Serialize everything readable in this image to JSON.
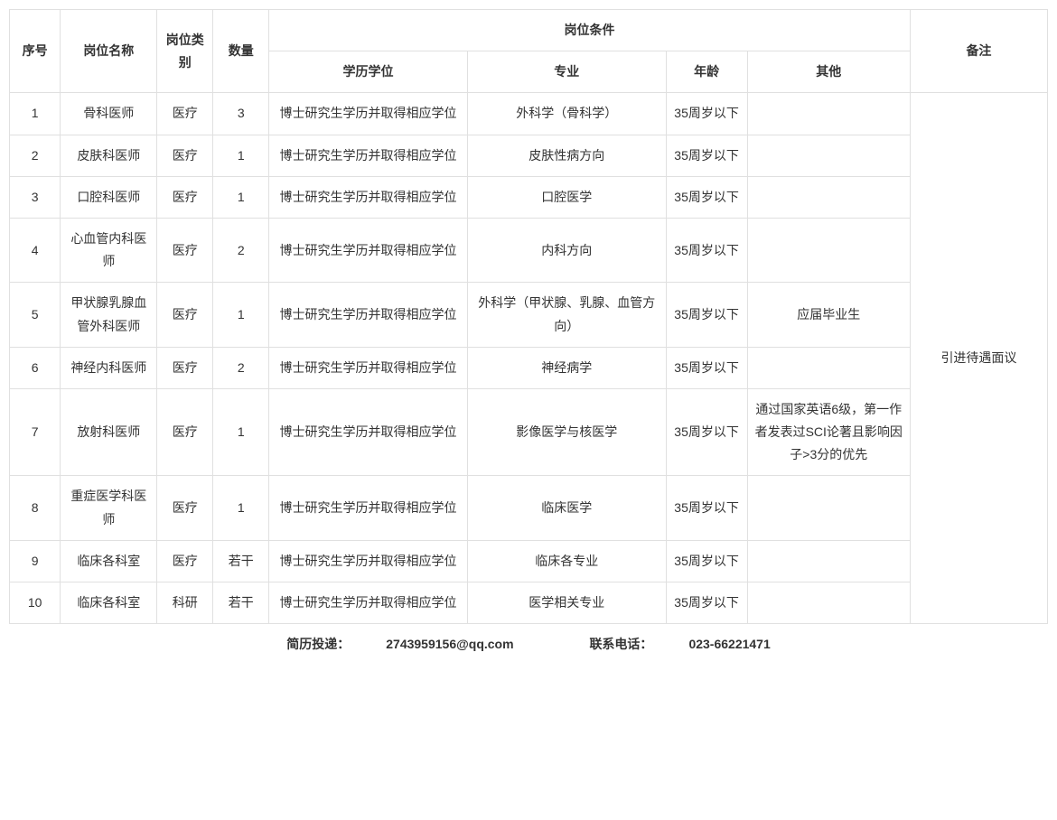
{
  "table": {
    "headers": {
      "seq": "序号",
      "position_name": "岗位名称",
      "position_type": "岗位类别",
      "quantity": "数量",
      "conditions": "岗位条件",
      "education": "学历学位",
      "major": "专业",
      "age": "年龄",
      "other": "其他",
      "remark": "备注"
    },
    "rows": [
      {
        "seq": "1",
        "position_name": "骨科医师",
        "position_type": "医疗",
        "quantity": "3",
        "education": "博士研究生学历并取得相应学位",
        "major": "外科学（骨科学）",
        "age": "35周岁以下",
        "other": ""
      },
      {
        "seq": "2",
        "position_name": "皮肤科医师",
        "position_type": "医疗",
        "quantity": "1",
        "education": "博士研究生学历并取得相应学位",
        "major": "皮肤性病方向",
        "age": "35周岁以下",
        "other": ""
      },
      {
        "seq": "3",
        "position_name": "口腔科医师",
        "position_type": "医疗",
        "quantity": "1",
        "education": "博士研究生学历并取得相应学位",
        "major": "口腔医学",
        "age": "35周岁以下",
        "other": ""
      },
      {
        "seq": "4",
        "position_name": "心血管内科医师",
        "position_type": "医疗",
        "quantity": "2",
        "education": "博士研究生学历并取得相应学位",
        "major": "内科方向",
        "age": "35周岁以下",
        "other": ""
      },
      {
        "seq": "5",
        "position_name": "甲状腺乳腺血管外科医师",
        "position_type": "医疗",
        "quantity": "1",
        "education": "博士研究生学历并取得相应学位",
        "major": "外科学（甲状腺、乳腺、血管方向）",
        "age": "35周岁以下",
        "other": "应届毕业生"
      },
      {
        "seq": "6",
        "position_name": "神经内科医师",
        "position_type": "医疗",
        "quantity": "2",
        "education": "博士研究生学历并取得相应学位",
        "major": "神经病学",
        "age": "35周岁以下",
        "other": ""
      },
      {
        "seq": "7",
        "position_name": "放射科医师",
        "position_type": "医疗",
        "quantity": "1",
        "education": "博士研究生学历并取得相应学位",
        "major": "影像医学与核医学",
        "age": "35周岁以下",
        "other": "通过国家英语6级，第一作者发表过SCI论著且影响因子>3分的优先"
      },
      {
        "seq": "8",
        "position_name": "重症医学科医师",
        "position_type": "医疗",
        "quantity": "1",
        "education": "博士研究生学历并取得相应学位",
        "major": "临床医学",
        "age": "35周岁以下",
        "other": ""
      },
      {
        "seq": "9",
        "position_name": "临床各科室",
        "position_type": "医疗",
        "quantity": "若干",
        "education": "博士研究生学历并取得相应学位",
        "major": "临床各专业",
        "age": "35周岁以下",
        "other": ""
      },
      {
        "seq": "10",
        "position_name": "临床各科室",
        "position_type": "科研",
        "quantity": "若干",
        "education": "博士研究生学历并取得相应学位",
        "major": "医学相关专业",
        "age": "35周岁以下",
        "other": ""
      }
    ],
    "remark_value": "引进待遇面议",
    "column_widths": {
      "seq": "50px",
      "position_name": "95px",
      "position_type": "55px",
      "quantity": "55px",
      "education": "195px",
      "major": "195px",
      "age": "80px",
      "other": "160px",
      "remark": "135px"
    }
  },
  "footer": {
    "resume_label": "简历投递：",
    "resume_email": "2743959156@qq.com",
    "phone_label": "联系电话：",
    "phone_number": "023-66221471"
  }
}
